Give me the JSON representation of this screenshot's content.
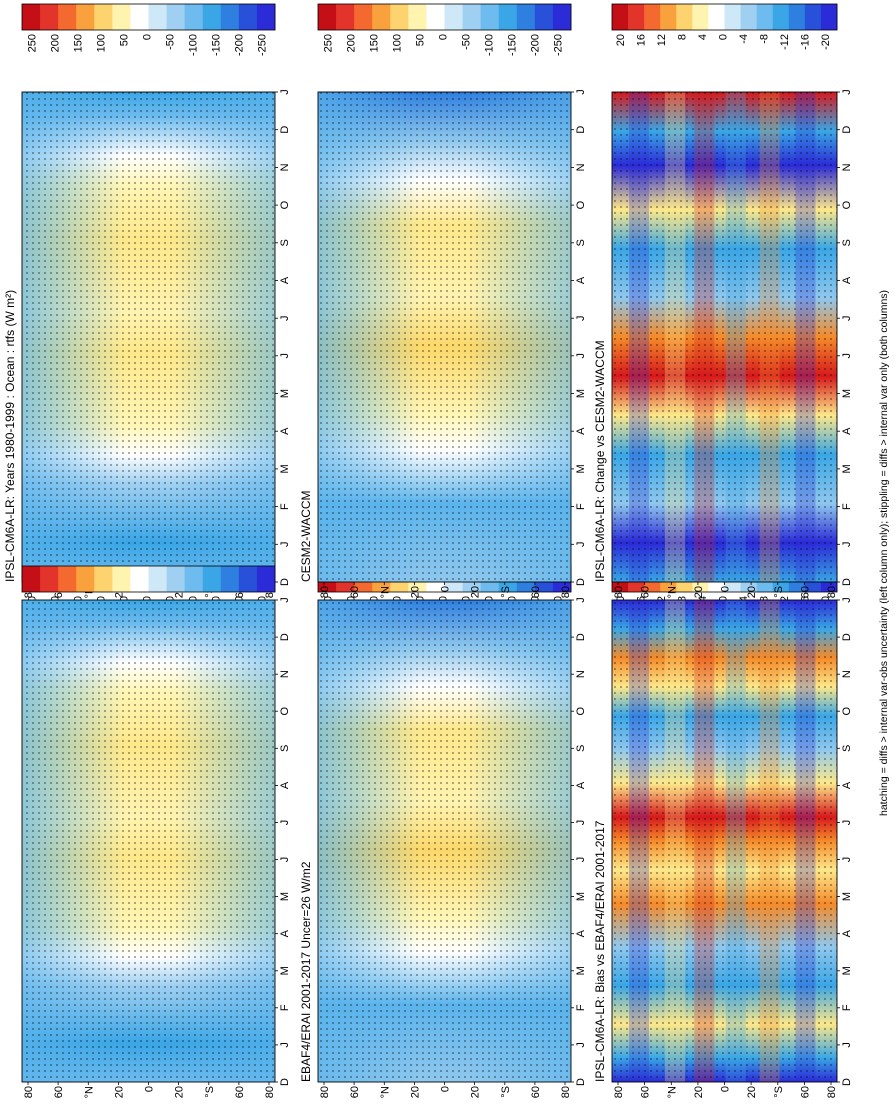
{
  "figure": {
    "footnote": "hatching = diffs > internal var-obs uncertainty (left column only); stippling = diffs > internal var only (both columns)",
    "colors": {
      "deep_red": "#d7191c",
      "orange": "#f58b2a",
      "yellow": "#fee88b",
      "white": "#ffffff",
      "light_blue": "#8fc8ee",
      "mid_blue": "#3aa6e6",
      "deep_blue": "#2b2bd8"
    }
  },
  "chart_data": [
    {
      "id": "p1",
      "type": "heatmap",
      "title": "IPSL-CM6A-LR: Years 1980-1999 : Ocean : rtfs (W m²)",
      "month_labels": [
        "D",
        "J",
        "F",
        "M",
        "A",
        "M",
        "J",
        "J",
        "A",
        "S",
        "O",
        "N",
        "D",
        "J"
      ],
      "lat_labels": [
        "80",
        "60",
        "°N",
        "20",
        "0",
        "20",
        "°S",
        "60",
        "80"
      ],
      "colorbar_ticks": [
        "250",
        "200",
        "150",
        "100",
        "50",
        "0",
        "-50",
        "-100",
        "-150",
        "-200",
        "-250"
      ],
      "colorbar_range": [
        -275,
        275
      ]
    },
    {
      "id": "p2",
      "type": "heatmap",
      "title": "",
      "month_labels": [
        "D",
        "J",
        "F",
        "M",
        "A",
        "M",
        "J",
        "J",
        "A",
        "S",
        "O",
        "N",
        "D",
        "J"
      ],
      "lat_labels": [
        "80",
        "60",
        "°N",
        "20",
        "0",
        "20",
        "°S",
        "60",
        "80"
      ],
      "colorbar_ticks": [
        "250",
        "200",
        "150",
        "100",
        "50",
        "0",
        "-50",
        "-100",
        "-150",
        "-200",
        "-250"
      ],
      "colorbar_range": [
        -275,
        275
      ]
    },
    {
      "id": "p3",
      "type": "heatmap",
      "title": "EBAF4/ERAI 2001-2017 Uncer=26 W/m2",
      "month_labels": [
        "D",
        "J",
        "F",
        "M",
        "A",
        "M",
        "J",
        "J",
        "A",
        "S",
        "O",
        "N",
        "D",
        "J"
      ],
      "lat_labels": [
        "80",
        "60",
        "°N",
        "20",
        "0",
        "20",
        "°S",
        "60",
        "80"
      ],
      "colorbar_ticks": [
        "250",
        "200",
        "150",
        "100",
        "50",
        "0",
        "-50",
        "-100",
        "-150",
        "-200",
        "-250"
      ],
      "colorbar_range": [
        -275,
        275
      ]
    },
    {
      "id": "p4",
      "type": "heatmap",
      "title": "CESM2-WACCM",
      "month_labels": [
        "D",
        "J",
        "F",
        "M",
        "A",
        "M",
        "J",
        "J",
        "A",
        "S",
        "O",
        "N",
        "D",
        "J"
      ],
      "lat_labels": [
        "80",
        "60",
        "°N",
        "20",
        "0",
        "20",
        "°S",
        "60",
        "80"
      ],
      "colorbar_ticks": [
        "250",
        "200",
        "150",
        "100",
        "50",
        "0",
        "-50",
        "-100",
        "-150",
        "-200",
        "-250"
      ],
      "colorbar_range": [
        -275,
        275
      ]
    },
    {
      "id": "p5",
      "type": "heatmap",
      "title": "IPSL-CM6A-LR: Bias vs EBAF4/ERAI 2001-2017",
      "month_labels": [
        "D",
        "J",
        "F",
        "M",
        "A",
        "M",
        "J",
        "J",
        "A",
        "S",
        "O",
        "N",
        "D",
        "J"
      ],
      "lat_labels": [
        "80",
        "60",
        "°N",
        "20",
        "0",
        "20",
        "°S",
        "60",
        "80"
      ],
      "colorbar_ticks": [
        "20",
        "16",
        "12",
        "8",
        "4",
        "0",
        "-4",
        "-8",
        "-12",
        "-16",
        "-20"
      ],
      "colorbar_range": [
        -22,
        22
      ]
    },
    {
      "id": "p6",
      "type": "heatmap",
      "title": "IPSL-CM6A-LR: Change vs CESM2-WACCM",
      "month_labels": [
        "D",
        "J",
        "F",
        "M",
        "A",
        "M",
        "J",
        "J",
        "A",
        "S",
        "O",
        "N",
        "D",
        "J"
      ],
      "lat_labels": [
        "80",
        "60",
        "°N",
        "20",
        "0",
        "20",
        "°S",
        "60",
        "80"
      ],
      "colorbar_ticks": [
        "20",
        "16",
        "12",
        "8",
        "4",
        "0",
        "-4",
        "-8",
        "-12",
        "-16",
        "-20"
      ],
      "colorbar_range": [
        -22,
        22
      ]
    }
  ]
}
